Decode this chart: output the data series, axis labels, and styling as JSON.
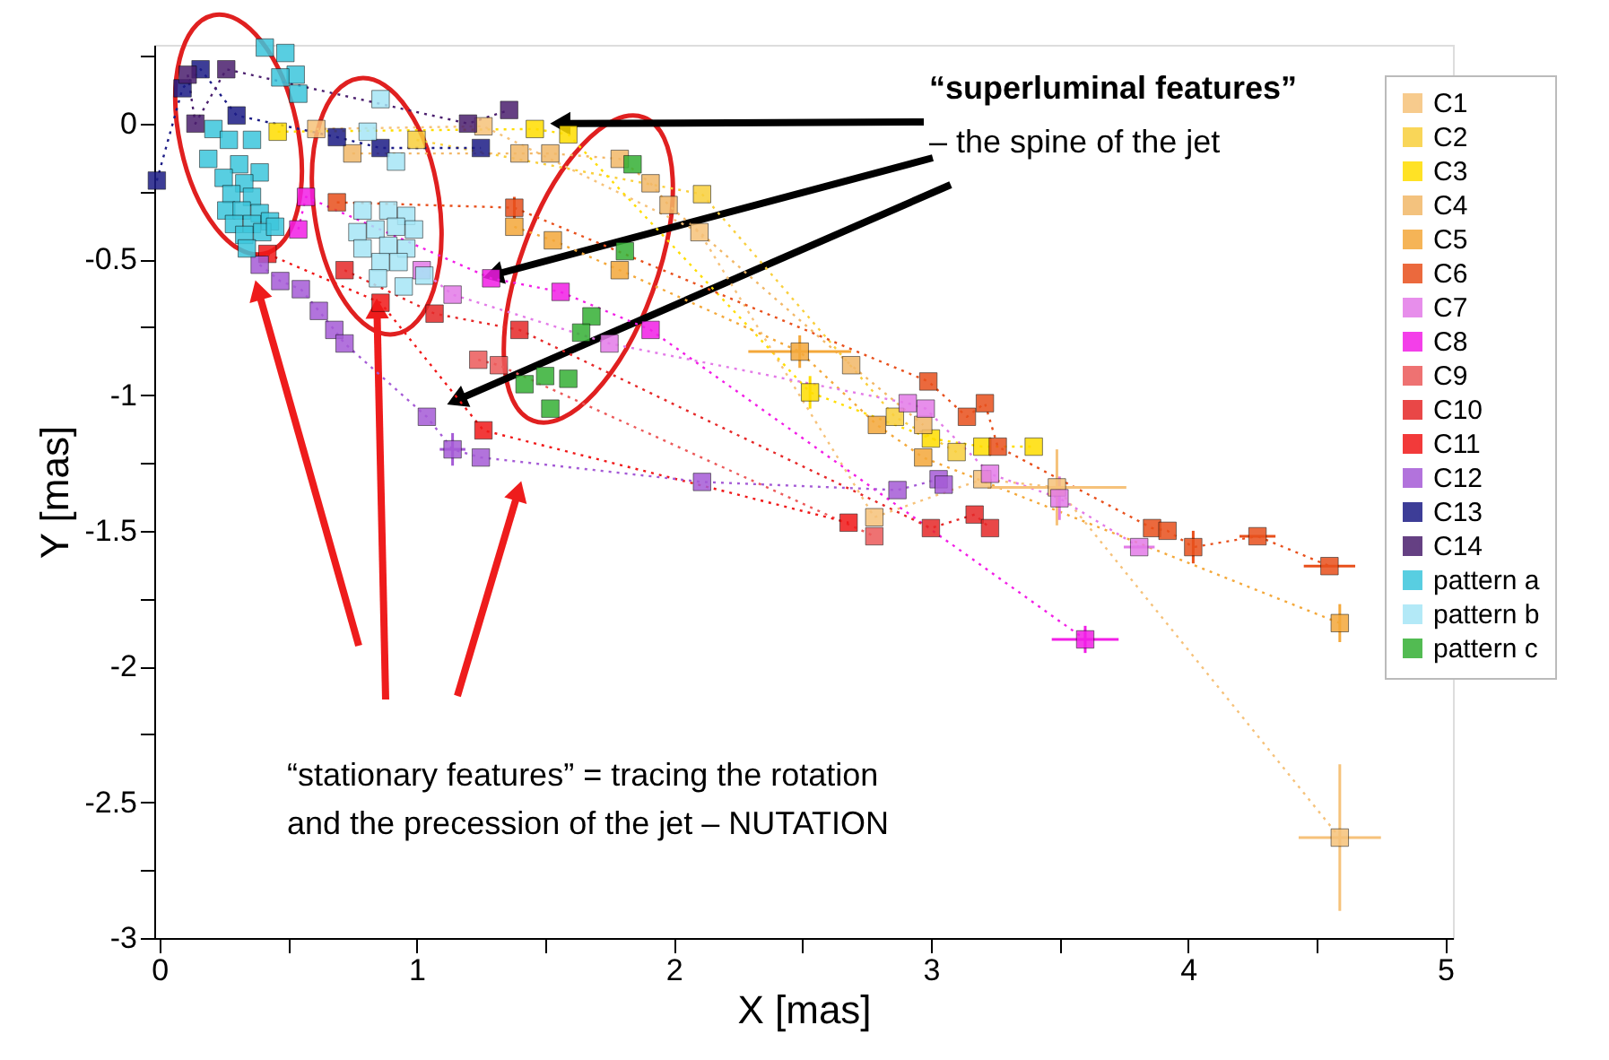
{
  "chart_data": {
    "type": "scatter",
    "xlabel": "X [mas]",
    "ylabel": "Y [mas]",
    "xlim": [
      -0.02,
      5.03
    ],
    "ylim": [
      -3,
      0.29
    ],
    "xticks": [
      0,
      {
        "value": 0.5,
        "label": null
      },
      1,
      {
        "value": 1.5,
        "label": null
      },
      2,
      {
        "value": 2.5,
        "label": null
      },
      3,
      {
        "value": 3.5,
        "label": null
      },
      4,
      {
        "value": 4.5,
        "label": null
      },
      5
    ],
    "yticks": [
      -3,
      {
        "value": -2.75,
        "label": null
      },
      -2.5,
      {
        "value": -2.25,
        "label": null
      },
      -2,
      {
        "value": -1.75,
        "label": null
      },
      -1.5,
      {
        "value": -1.25,
        "label": null
      },
      -1,
      {
        "value": -0.75,
        "label": null
      },
      -0.5,
      {
        "value": -0.25,
        "label": null
      },
      0,
      {
        "value": 0.25,
        "label": null
      }
    ],
    "grid": false,
    "legend": "top right",
    "marker": "square",
    "line_style": "dotted",
    "annotations": [
      {
        "text": "“superluminal features”",
        "x": 1.51,
        "y": 0.0
      },
      {
        "text": "– the spine of the jet",
        "x": 1.25,
        "y": -0.57
      },
      "“stationary features” = tracing the rotation",
      "and the precession of the jet – NUTATION"
    ],
    "series": [
      {
        "name": "C1",
        "type": "line",
        "color": "#f6c27a",
        "x": [
          0.61,
          1.26,
          2.1,
          2.78,
          3.2,
          3.49,
          4.59
        ],
        "values": [
          -0.02,
          -0.01,
          -0.4,
          -1.45,
          -1.31,
          -1.34,
          -2.63
        ],
        "errors": [
          null,
          null,
          null,
          null,
          null,
          0.14,
          0.27
        ],
        "xerrors": [
          null,
          null,
          null,
          null,
          null,
          0.27,
          0.16
        ]
      },
      {
        "name": "C2",
        "type": "line",
        "color": "#f9cf3c",
        "x": [
          1.0,
          2.11,
          2.86,
          3.1
        ],
        "values": [
          -0.06,
          -0.26,
          -1.08,
          -1.21
        ]
      },
      {
        "name": "C3",
        "type": "line",
        "color": "#ffdd00",
        "x": [
          0.46,
          1.46,
          1.59,
          2.53,
          3.0,
          3.2,
          3.4
        ],
        "values": [
          -0.03,
          -0.02,
          -0.04,
          -0.99,
          -1.16,
          -1.19,
          -1.19
        ],
        "errors": [
          null,
          null,
          null,
          0.06,
          null,
          null,
          null
        ]
      },
      {
        "name": "C4",
        "type": "line",
        "color": "#f2b868",
        "x": [
          0.75,
          1.4,
          1.52,
          1.79,
          1.91,
          1.98,
          2.69,
          2.97
        ],
        "values": [
          -0.11,
          -0.11,
          -0.11,
          -0.13,
          -0.22,
          -0.3,
          -0.89,
          -1.11
        ]
      },
      {
        "name": "C5",
        "type": "line",
        "color": "#f4a83a",
        "x": [
          1.38,
          1.53,
          1.79,
          2.49,
          2.79,
          2.97,
          4.59
        ],
        "values": [
          -0.38,
          -0.43,
          -0.54,
          -0.84,
          -1.11,
          -1.23,
          -1.84
        ],
        "errors": [
          null,
          null,
          null,
          0.06,
          null,
          null,
          0.07
        ],
        "xerrors": [
          null,
          null,
          null,
          0.2,
          null,
          null,
          null
        ]
      },
      {
        "name": "C6",
        "type": "line",
        "color": "#e8501c",
        "x": [
          0.69,
          1.38,
          2.99,
          3.14,
          3.21,
          3.26,
          3.86,
          3.92,
          4.02,
          4.27,
          4.55
        ],
        "values": [
          -0.29,
          -0.31,
          -0.95,
          -1.08,
          -1.03,
          -1.19,
          -1.49,
          -1.5,
          -1.56,
          -1.52,
          -1.63
        ],
        "errors": [
          null,
          0.04,
          null,
          null,
          null,
          null,
          null,
          null,
          0.06,
          null,
          null
        ],
        "xerrors": [
          null,
          null,
          null,
          null,
          null,
          null,
          null,
          null,
          null,
          0.07,
          0.1
        ]
      },
      {
        "name": "C7",
        "type": "line",
        "color": "#e37be8",
        "x": [
          1.02,
          1.14,
          1.75,
          2.91,
          2.98,
          3.23,
          3.5,
          3.81
        ],
        "values": [
          -0.54,
          -0.63,
          -0.81,
          -1.03,
          -1.05,
          -1.29,
          -1.38,
          -1.56
        ],
        "errors": [
          null,
          null,
          null,
          null,
          null,
          null,
          0.08,
          null
        ],
        "xerrors": [
          null,
          null,
          null,
          null,
          null,
          null,
          null,
          0.06
        ]
      },
      {
        "name": "C8",
        "type": "line",
        "color": "#f21ee6",
        "x": [
          0.54,
          0.57,
          1.29,
          1.56,
          1.91,
          3.6
        ],
        "values": [
          -0.39,
          -0.27,
          -0.57,
          -0.62,
          -0.76,
          -1.9
        ],
        "errors": [
          null,
          null,
          null,
          null,
          null,
          0.05
        ],
        "xerrors": [
          null,
          null,
          null,
          null,
          null,
          0.13
        ]
      },
      {
        "name": "C9",
        "type": "line",
        "color": "#ec5a5a",
        "x": [
          1.24,
          1.32,
          2.78
        ],
        "values": [
          -0.87,
          -0.89,
          -1.52
        ]
      },
      {
        "name": "C10",
        "type": "line",
        "color": "#e62828",
        "x": [
          0.72,
          1.07,
          1.4,
          3.0,
          3.17,
          3.23
        ],
        "values": [
          -0.54,
          -0.7,
          -0.76,
          -1.49,
          -1.44,
          -1.49
        ]
      },
      {
        "name": "C11",
        "type": "line",
        "color": "#f01818",
        "x": [
          0.42,
          0.86,
          1.26,
          2.68
        ],
        "values": [
          -0.48,
          -0.66,
          -1.13,
          -1.47
        ]
      },
      {
        "name": "C12",
        "type": "line",
        "color": "#a55bd6",
        "x": [
          0.39,
          0.47,
          0.55,
          0.62,
          0.68,
          0.72,
          1.04,
          1.14,
          1.25,
          2.11,
          2.87,
          3.03,
          3.05
        ],
        "values": [
          -0.52,
          -0.58,
          -0.61,
          -0.69,
          -0.76,
          -0.81,
          -1.08,
          -1.2,
          -1.23,
          -1.32,
          -1.35,
          -1.31,
          -1.33
        ],
        "errors": [
          null,
          null,
          null,
          null,
          null,
          null,
          null,
          0.06,
          null,
          null,
          null,
          null,
          null
        ],
        "xerrors": [
          null,
          null,
          null,
          null,
          null,
          null,
          null,
          0.05,
          null,
          null,
          null,
          null,
          null
        ]
      },
      {
        "name": "C13",
        "type": "line",
        "color": "#1c1c86",
        "x": [
          -0.01,
          0.09,
          0.16,
          0.3,
          0.69,
          0.86,
          1.25
        ],
        "values": [
          -0.21,
          0.13,
          0.2,
          0.03,
          -0.05,
          -0.09,
          -0.09
        ]
      },
      {
        "name": "C14",
        "type": "line",
        "color": "#4b1f6e",
        "x": [
          0.11,
          0.14,
          0.26,
          1.2,
          1.36
        ],
        "values": [
          0.18,
          0.0,
          0.2,
          0.0,
          0.05
        ]
      },
      {
        "name": "pattern a",
        "type": "scatter",
        "color": "#3cc6dc",
        "x": [
          0.41,
          0.49,
          0.53,
          0.54,
          0.47,
          0.21,
          0.27,
          0.36,
          0.19,
          0.31,
          0.39,
          0.25,
          0.33,
          0.28,
          0.36,
          0.26,
          0.32,
          0.39,
          0.29,
          0.36,
          0.43,
          0.33,
          0.4,
          0.34,
          0.45
        ],
        "values": [
          0.28,
          0.26,
          0.18,
          0.11,
          0.17,
          -0.02,
          -0.06,
          -0.06,
          -0.13,
          -0.15,
          -0.18,
          -0.2,
          -0.22,
          -0.26,
          -0.27,
          -0.32,
          -0.32,
          -0.33,
          -0.37,
          -0.37,
          -0.36,
          -0.41,
          -0.4,
          -0.46,
          -0.38
        ]
      },
      {
        "name": "pattern b",
        "type": "scatter",
        "color": "#a6e6f6",
        "x": [
          0.86,
          0.81,
          0.92,
          0.79,
          0.89,
          0.96,
          0.77,
          0.84,
          0.92,
          0.99,
          0.79,
          0.89,
          0.96,
          0.86,
          0.93,
          0.85,
          0.95,
          1.03
        ],
        "values": [
          0.09,
          -0.03,
          -0.14,
          -0.32,
          -0.32,
          -0.34,
          -0.4,
          -0.39,
          -0.38,
          -0.39,
          -0.46,
          -0.45,
          -0.46,
          -0.51,
          -0.51,
          -0.57,
          -0.6,
          -0.56
        ]
      },
      {
        "name": "pattern c",
        "type": "scatter",
        "color": "#34b034",
        "x": [
          1.84,
          1.81,
          1.68,
          1.64,
          1.59,
          1.5,
          1.42,
          1.52
        ],
        "values": [
          -0.15,
          -0.47,
          -0.71,
          -0.77,
          -0.94,
          -0.93,
          -0.96,
          -1.05
        ]
      }
    ]
  }
}
